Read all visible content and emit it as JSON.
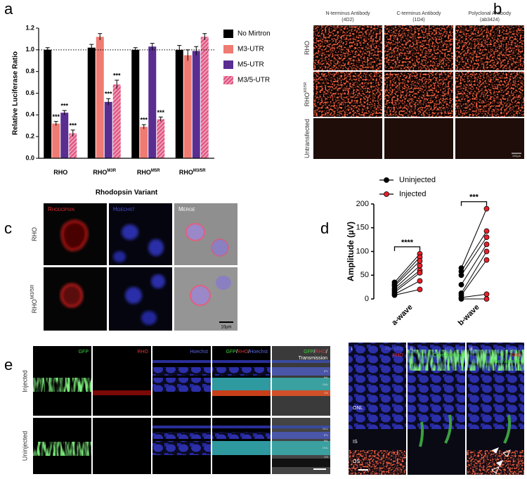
{
  "panel_labels": [
    "a",
    "b",
    "c",
    "d",
    "e",
    "f"
  ],
  "chart_data": [
    {
      "type": "bar",
      "ylabel": "Relative Luciferase Ratio",
      "xlabel": "Rhodopsin Variant",
      "categories": [
        {
          "base": "RHO"
        },
        {
          "base": "RHO",
          "sup": "M3R"
        },
        {
          "base": "RHO",
          "sup": "M5R"
        },
        {
          "base": "RHO",
          "sup": "M3/5R"
        }
      ],
      "series": [
        {
          "name": "No Mirtron",
          "color": "#000000",
          "values": [
            1.0,
            1.02,
            1.0,
            1.0
          ],
          "errors": [
            0.02,
            0.03,
            0.02,
            0.04
          ]
        },
        {
          "name": "M3-UTR",
          "color": "#ef7b72",
          "values": [
            0.32,
            1.12,
            0.29,
            0.95
          ],
          "errors": [
            0.02,
            0.03,
            0.02,
            0.05
          ],
          "significance": [
            "***",
            null,
            "***",
            null
          ]
        },
        {
          "name": "M5-UTR",
          "color": "#5a2d91",
          "values": [
            0.42,
            0.52,
            1.03,
            0.99
          ],
          "errors": [
            0.02,
            0.03,
            0.03,
            0.04
          ],
          "significance": [
            "***",
            "***",
            null,
            null
          ]
        },
        {
          "name": "M3/5-UTR",
          "color": "#e0507e",
          "hatch": true,
          "values": [
            0.23,
            0.68,
            0.36,
            1.12
          ],
          "errors": [
            0.03,
            0.04,
            0.02,
            0.03
          ],
          "significance": [
            "***",
            "***",
            "***",
            null
          ]
        }
      ],
      "ylim": [
        0,
        1.2
      ],
      "yticks": [
        {
          "value": 0,
          "label": "0.0"
        },
        0.2,
        0.4,
        0.6,
        0.8,
        {
          "value": 1,
          "label": "1.0"
        },
        1.2
      ],
      "reference_line": 1.0,
      "legend": "right"
    },
    {
      "type": "paired",
      "ylabel": "Amplitude (µV)",
      "categories": [
        "a-wave",
        "b-wave"
      ],
      "series": [
        {
          "name": "Uninjected",
          "color": "#000000",
          "values": [
            [
              35,
              30,
              27,
              22,
              18,
              14,
              10,
              8
            ],
            [
              65,
              58,
              50,
              30,
              12,
              8,
              3,
              0
            ]
          ]
        },
        {
          "name": "Injected",
          "color": "#e8202a",
          "values": [
            [
              95,
              88,
              80,
              70,
              60,
              55,
              38,
              20
            ],
            [
              190,
              143,
              130,
              115,
              100,
              82,
              10,
              0
            ]
          ]
        }
      ],
      "significance": [
        "****",
        "***"
      ],
      "ylim": [
        0,
        200
      ],
      "yticks": [
        0,
        50,
        100,
        150,
        200
      ],
      "legend": "upper left"
    }
  ],
  "panel_b": {
    "columns": [
      "N-terminus Antibody",
      "C-terminus Antibody",
      "Polyclonal Antibody"
    ],
    "column_ids": [
      "(4D2)",
      "(1D4)",
      "(ab3424)"
    ],
    "rows": [
      {
        "base": "RHO"
      },
      {
        "base": "RHO",
        "sup": "M3/5R"
      },
      {
        "base": "Untransfected"
      }
    ],
    "scale_bar": "100µm"
  },
  "panel_c": {
    "columns": [
      "Rhodopsin",
      "Hoechst",
      "Merge"
    ],
    "rows": [
      {
        "base": "RHO"
      },
      {
        "base": "RHO",
        "sup": "M3/5R"
      }
    ],
    "scale_bar": "10µm"
  },
  "panel_e": {
    "columns": [
      [
        "GFP"
      ],
      [
        "RHO"
      ],
      [
        "Hoechst"
      ],
      [
        "GFP",
        "/",
        "RHO",
        "/",
        "Hoechst"
      ],
      [
        "GFP",
        "/",
        "RHO",
        "/",
        "Transmission"
      ]
    ],
    "rows": [
      "Injected",
      "Uninjected"
    ],
    "layers": [
      "OCL",
      "IPL",
      "INL",
      "ONL",
      "OS"
    ]
  },
  "panel_f": {
    "panels": [
      {
        "numeral": "i",
        "labels": [
          "Hoechst",
          "RHO"
        ]
      },
      {
        "numeral": "ii",
        "labels": [
          "Hoechst",
          "Cone Arrestin"
        ]
      },
      {
        "numeral": "iii",
        "labels": [
          "Hoechst",
          "RHO",
          "Cone Arrestin"
        ]
      }
    ],
    "layers": [
      "ONL",
      "IS",
      "OS"
    ]
  }
}
